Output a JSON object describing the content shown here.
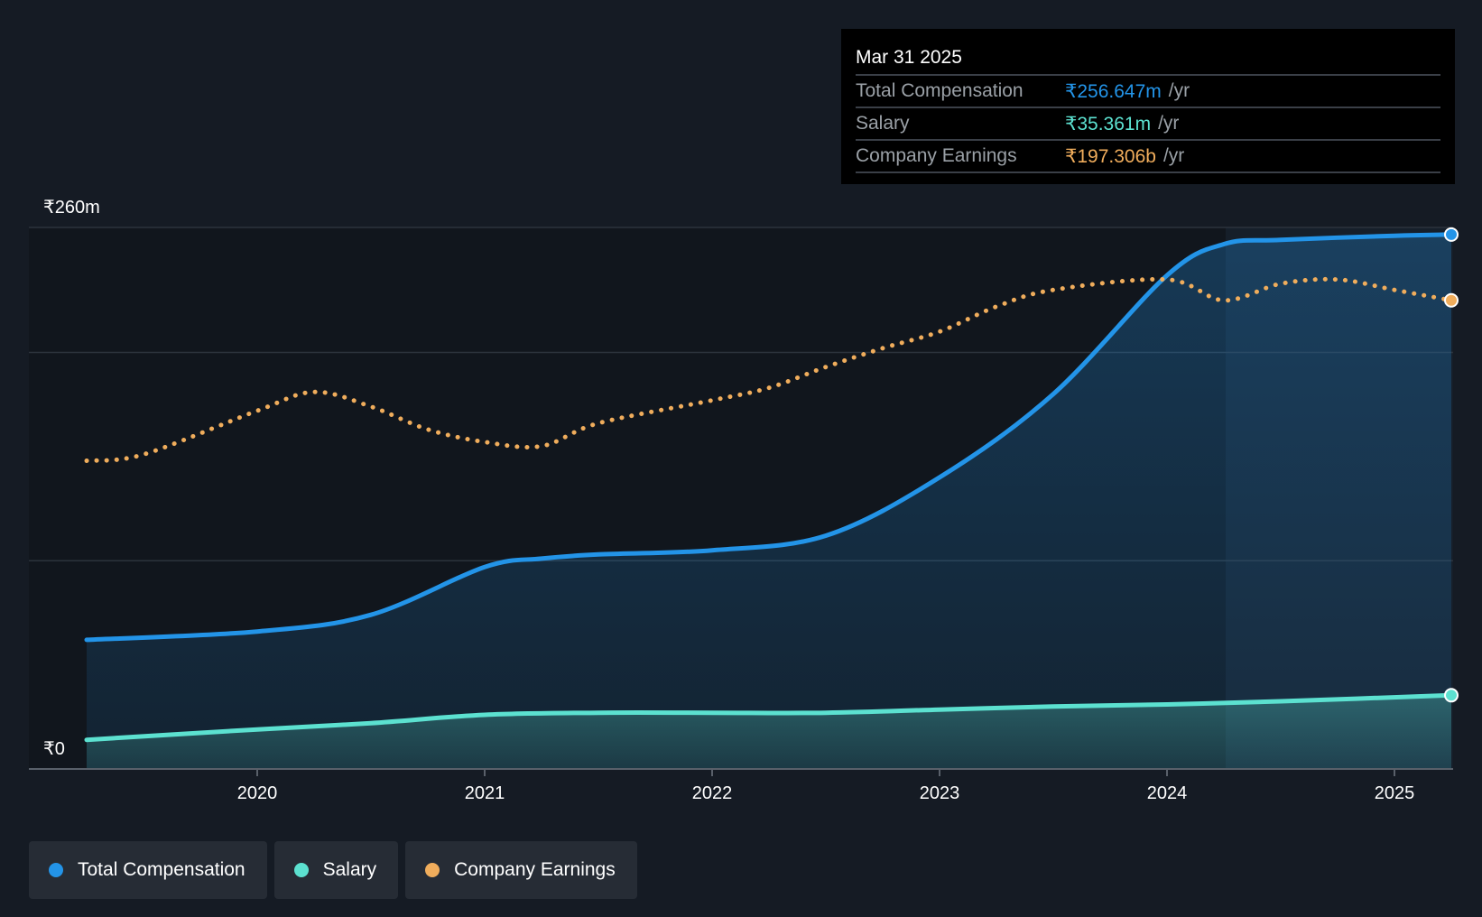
{
  "chart_data": {
    "type": "line",
    "y_axis": {
      "min_label": "₹0",
      "max_label": "₹260m",
      "ylim": [
        0,
        260
      ]
    },
    "x_axis": {
      "tick_labels": [
        "2020",
        "2021",
        "2022",
        "2023",
        "2024",
        "2025"
      ],
      "range": [
        2019.25,
        2025.25
      ]
    },
    "grid": true,
    "legend_position": "bottom-left",
    "series": [
      {
        "name": "Total Compensation",
        "key": "total_compensation",
        "color": "#2394e8",
        "style": "solid",
        "filled": true,
        "x": [
          2019.25,
          2020.0,
          2020.5,
          2021.0,
          2021.25,
          2021.5,
          2022.0,
          2022.5,
          2023.0,
          2023.5,
          2024.0,
          2024.25,
          2024.5,
          2025.0,
          2025.25
        ],
        "y": [
          62,
          66,
          74,
          97,
          101,
          103,
          105,
          112,
          140,
          180,
          237,
          252,
          254,
          256,
          256.6
        ]
      },
      {
        "name": "Salary",
        "key": "salary",
        "color": "#5ce1d0",
        "style": "solid",
        "filled": true,
        "x": [
          2019.25,
          2020.0,
          2020.5,
          2021.0,
          2021.5,
          2022.0,
          2022.5,
          2023.0,
          2023.5,
          2024.0,
          2024.5,
          2025.25
        ],
        "y": [
          14,
          19,
          22,
          26,
          27,
          27,
          27,
          28.5,
          30,
          31,
          32.5,
          35.4
        ]
      },
      {
        "name": "Company Earnings",
        "key": "company_earnings",
        "color": "#f0ad5c",
        "style": "dotted",
        "filled": false,
        "x": [
          2019.25,
          2019.5,
          2020.0,
          2020.25,
          2020.5,
          2020.75,
          2021.0,
          2021.25,
          2021.5,
          2022.0,
          2022.25,
          2022.5,
          2022.75,
          2023.0,
          2023.25,
          2023.5,
          2024.0,
          2024.25,
          2024.5,
          2024.75,
          2025.0,
          2025.25
        ],
        "y": [
          148,
          151,
          172,
          181,
          174,
          163,
          157,
          155,
          166,
          177,
          183,
          193,
          202,
          210,
          222,
          230,
          235,
          225,
          233,
          235,
          230,
          225
        ]
      }
    ],
    "tooltip": {
      "date": "Mar 31 2025",
      "rows": [
        {
          "label": "Total Compensation",
          "value": "₹256.647m",
          "unit": "/yr",
          "color": "#2394e8"
        },
        {
          "label": "Salary",
          "value": "₹35.361m",
          "unit": "/yr",
          "color": "#5ce1d0"
        },
        {
          "label": "Company Earnings",
          "value": "₹197.306b",
          "unit": "/yr",
          "color": "#f0ad5c"
        }
      ]
    }
  },
  "legend": {
    "items": [
      {
        "label": "Total Compensation",
        "color": "#2394e8"
      },
      {
        "label": "Salary",
        "color": "#5ce1d0"
      },
      {
        "label": "Company Earnings",
        "color": "#f0ad5c"
      }
    ]
  }
}
